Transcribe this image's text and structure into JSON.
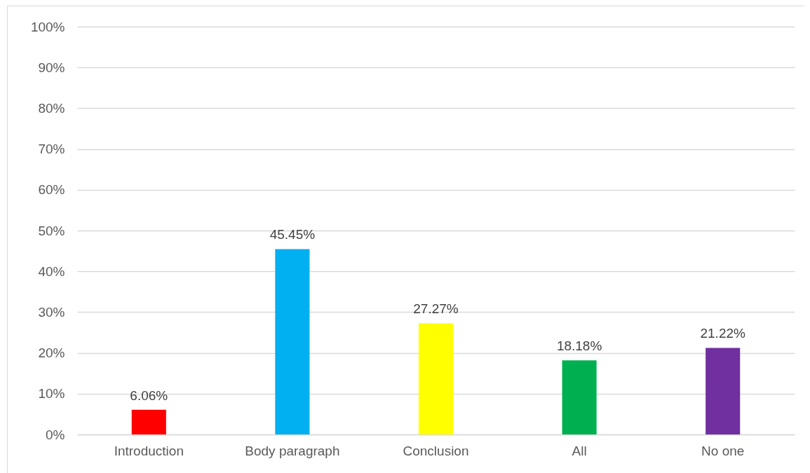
{
  "chart_data": {
    "type": "bar",
    "categories": [
      "Introduction",
      "Body paragraph",
      "Conclusion",
      "All",
      "No one"
    ],
    "values": [
      6.06,
      45.45,
      27.27,
      18.18,
      21.22
    ],
    "colors": [
      "#ff0000",
      "#00b0f0",
      "#ffff00",
      "#00b050",
      "#7030a0"
    ],
    "value_labels": [
      "6.06%",
      "45.45%",
      "27.27%",
      "18.18%",
      "21.22%"
    ],
    "ylim": [
      0,
      100
    ],
    "yticks": [
      {
        "value": 0,
        "label": "0%"
      },
      {
        "value": 10,
        "label": "10%"
      },
      {
        "value": 20,
        "label": "20%"
      },
      {
        "value": 30,
        "label": "30%"
      },
      {
        "value": 40,
        "label": "40%"
      },
      {
        "value": 50,
        "label": "50%"
      },
      {
        "value": 60,
        "label": "60%"
      },
      {
        "value": 70,
        "label": "70%"
      },
      {
        "value": 80,
        "label": "80%"
      },
      {
        "value": 90,
        "label": "90%"
      },
      {
        "value": 100,
        "label": "100%"
      }
    ],
    "grid": true
  }
}
